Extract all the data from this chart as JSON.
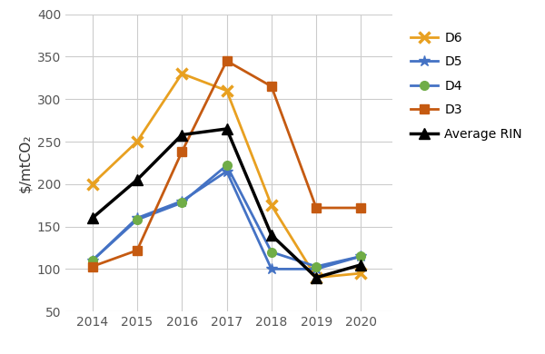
{
  "years": [
    2014,
    2015,
    2016,
    2017,
    2018,
    2019,
    2020
  ],
  "D6": [
    200,
    250,
    330,
    310,
    175,
    90,
    95
  ],
  "D5": [
    110,
    160,
    180,
    215,
    100,
    100,
    115
  ],
  "D4": [
    110,
    158,
    178,
    222,
    120,
    103,
    115
  ],
  "D3": [
    103,
    122,
    238,
    345,
    315,
    172,
    172
  ],
  "Average_RIN": [
    160,
    205,
    258,
    265,
    140,
    90,
    105
  ],
  "D6_color": "#e8a020",
  "D5_color": "#4472c4",
  "D4_color": "#4472c4",
  "D4_marker_color": "#70ad47",
  "D3_color": "#c55a11",
  "avg_color": "#000000",
  "ylabel": "$/mtCO₂",
  "ylim": [
    50,
    400
  ],
  "yticks": [
    50,
    100,
    150,
    200,
    250,
    300,
    350,
    400
  ],
  "bg_color": "#ffffff",
  "grid_color": "#cccccc",
  "legend_labels": [
    "D6",
    "D5",
    "D4",
    "D3",
    "Average RIN"
  ]
}
